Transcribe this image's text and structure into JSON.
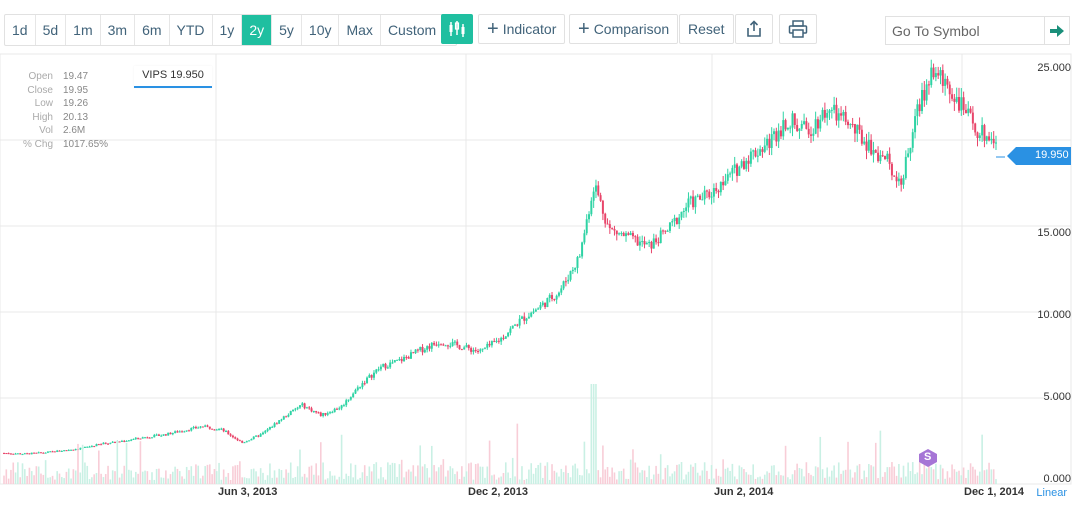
{
  "toolbar": {
    "ranges": [
      "1d",
      "5d",
      "1m",
      "3m",
      "6m",
      "YTD",
      "1y",
      "2y",
      "5y",
      "10y",
      "Max"
    ],
    "active_range": "2y",
    "custom_label": "Custom",
    "indicator_label": "Indicator",
    "comparison_label": "Comparison",
    "reset_label": "Reset",
    "symbol_placeholder": "Go To Symbol"
  },
  "hud": {
    "open_label": "Open",
    "open": "19.47",
    "close_label": "Close",
    "close": "19.95",
    "low_label": "Low",
    "low": "19.26",
    "high_label": "High",
    "high": "20.13",
    "vol_label": "Vol",
    "vol": "2.6M",
    "chg_label": "% Chg",
    "chg": "1017.65%"
  },
  "legend": {
    "symbol": "VIPS",
    "price": "19.950"
  },
  "current_price_tag": "19.950",
  "scale_label": "Linear",
  "event_marker": "S",
  "colors": {
    "up": "#2ed3a4",
    "down": "#e8456a",
    "accent": "#1fbfa0",
    "blue": "#2a91e3"
  },
  "chart_data": {
    "type": "candlestick",
    "ylim": [
      0,
      25
    ],
    "yticks": [
      "25.000",
      "15.000",
      "10.000",
      "5.000",
      "0.000"
    ],
    "xticks": [
      "Jun 3, 2013",
      "Dec 2, 2013",
      "Jun 2, 2014",
      "Dec 1, 2014"
    ],
    "close_series": [
      [
        0,
        1.8
      ],
      [
        0.02,
        1.75
      ],
      [
        0.04,
        1.82
      ],
      [
        0.06,
        1.95
      ],
      [
        0.08,
        2.1
      ],
      [
        0.1,
        2.35
      ],
      [
        0.12,
        2.5
      ],
      [
        0.14,
        2.7
      ],
      [
        0.16,
        2.85
      ],
      [
        0.18,
        3.1
      ],
      [
        0.2,
        3.35
      ],
      [
        0.22,
        3.15
      ],
      [
        0.24,
        2.4
      ],
      [
        0.26,
        2.9
      ],
      [
        0.28,
        3.8
      ],
      [
        0.3,
        4.6
      ],
      [
        0.32,
        4.0
      ],
      [
        0.34,
        4.5
      ],
      [
        0.36,
        5.8
      ],
      [
        0.38,
        6.8
      ],
      [
        0.4,
        7.2
      ],
      [
        0.42,
        7.8
      ],
      [
        0.44,
        8.3
      ],
      [
        0.46,
        8.0
      ],
      [
        0.48,
        7.7
      ],
      [
        0.5,
        8.4
      ],
      [
        0.52,
        9.5
      ],
      [
        0.54,
        10.3
      ],
      [
        0.56,
        11.2
      ],
      [
        0.58,
        13.2
      ],
      [
        0.595,
        17.5
      ],
      [
        0.61,
        14.8
      ],
      [
        0.63,
        14.3
      ],
      [
        0.65,
        13.8
      ],
      [
        0.67,
        14.8
      ],
      [
        0.69,
        16.3
      ],
      [
        0.71,
        16.8
      ],
      [
        0.73,
        17.8
      ],
      [
        0.75,
        19.0
      ],
      [
        0.77,
        19.8
      ],
      [
        0.79,
        21.2
      ],
      [
        0.81,
        20.5
      ],
      [
        0.83,
        21.8
      ],
      [
        0.85,
        21.0
      ],
      [
        0.87,
        19.8
      ],
      [
        0.89,
        18.8
      ],
      [
        0.905,
        17.5
      ],
      [
        0.92,
        21.5
      ],
      [
        0.935,
        24.0
      ],
      [
        0.95,
        23.3
      ],
      [
        0.965,
        22.0
      ],
      [
        0.98,
        20.6
      ],
      [
        1.0,
        19.95
      ]
    ]
  }
}
